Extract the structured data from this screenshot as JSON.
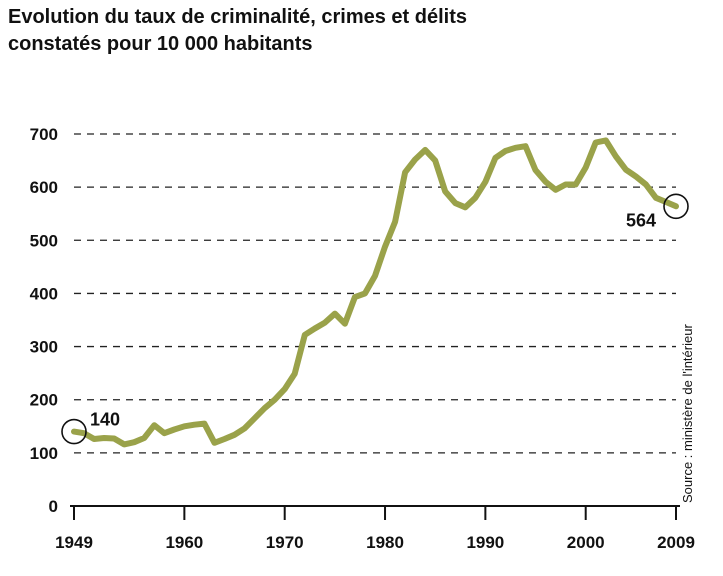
{
  "title": {
    "line1": "Evolution du taux de criminalité, crimes et délits",
    "line2": "constatés pour 10 000 habitants"
  },
  "source": "Source : ministère de l'intérieur",
  "colors": {
    "series": "#9aa24a",
    "grid": "#222222",
    "axis": "#111111"
  },
  "chart_data": {
    "type": "line",
    "title": "Evolution du taux de criminalité, crimes et délits constatés pour 10 000 habitants",
    "xlabel": "",
    "ylabel": "",
    "xlim": [
      1949,
      2009
    ],
    "ylim": [
      0,
      700
    ],
    "x_ticks": [
      1949,
      1960,
      1970,
      1980,
      1990,
      2000,
      2009
    ],
    "y_ticks": [
      0,
      100,
      200,
      300,
      400,
      500,
      600,
      700
    ],
    "grid": "horizontal dashed",
    "annotations": [
      {
        "x": 1949,
        "y": 140,
        "label": "140"
      },
      {
        "x": 2009,
        "y": 564,
        "label": "564"
      }
    ],
    "series": [
      {
        "x": [
          1949,
          1950,
          1951,
          1952,
          1953,
          1954,
          1955,
          1956,
          1957,
          1958,
          1959,
          1960,
          1961,
          1962,
          1963,
          1964,
          1965,
          1966,
          1967,
          1968,
          1969,
          1970,
          1971,
          1972,
          1973,
          1974,
          1975,
          1976,
          1977,
          1978,
          1979,
          1980,
          1981,
          1982,
          1983,
          1984,
          1985,
          1986,
          1987,
          1988,
          1989,
          1990,
          1991,
          1992,
          1993,
          1994,
          1995,
          1996,
          1997,
          1998,
          1999,
          2000,
          2001,
          2002,
          2003,
          2004,
          2005,
          2006,
          2007,
          2008,
          2009
        ],
        "values": [
          140,
          137,
          126,
          128,
          127,
          116,
          120,
          128,
          152,
          137,
          144,
          150,
          153,
          155,
          119,
          126,
          134,
          146,
          165,
          184,
          200,
          220,
          249,
          322,
          334,
          345,
          362,
          343,
          393,
          400,
          433,
          488,
          535,
          628,
          652,
          670,
          650,
          592,
          570,
          562,
          580,
          610,
          655,
          668,
          674,
          677,
          632,
          610,
          595,
          605,
          605,
          637,
          684,
          688,
          658,
          633,
          620,
          605,
          580,
          572,
          564
        ]
      }
    ]
  }
}
